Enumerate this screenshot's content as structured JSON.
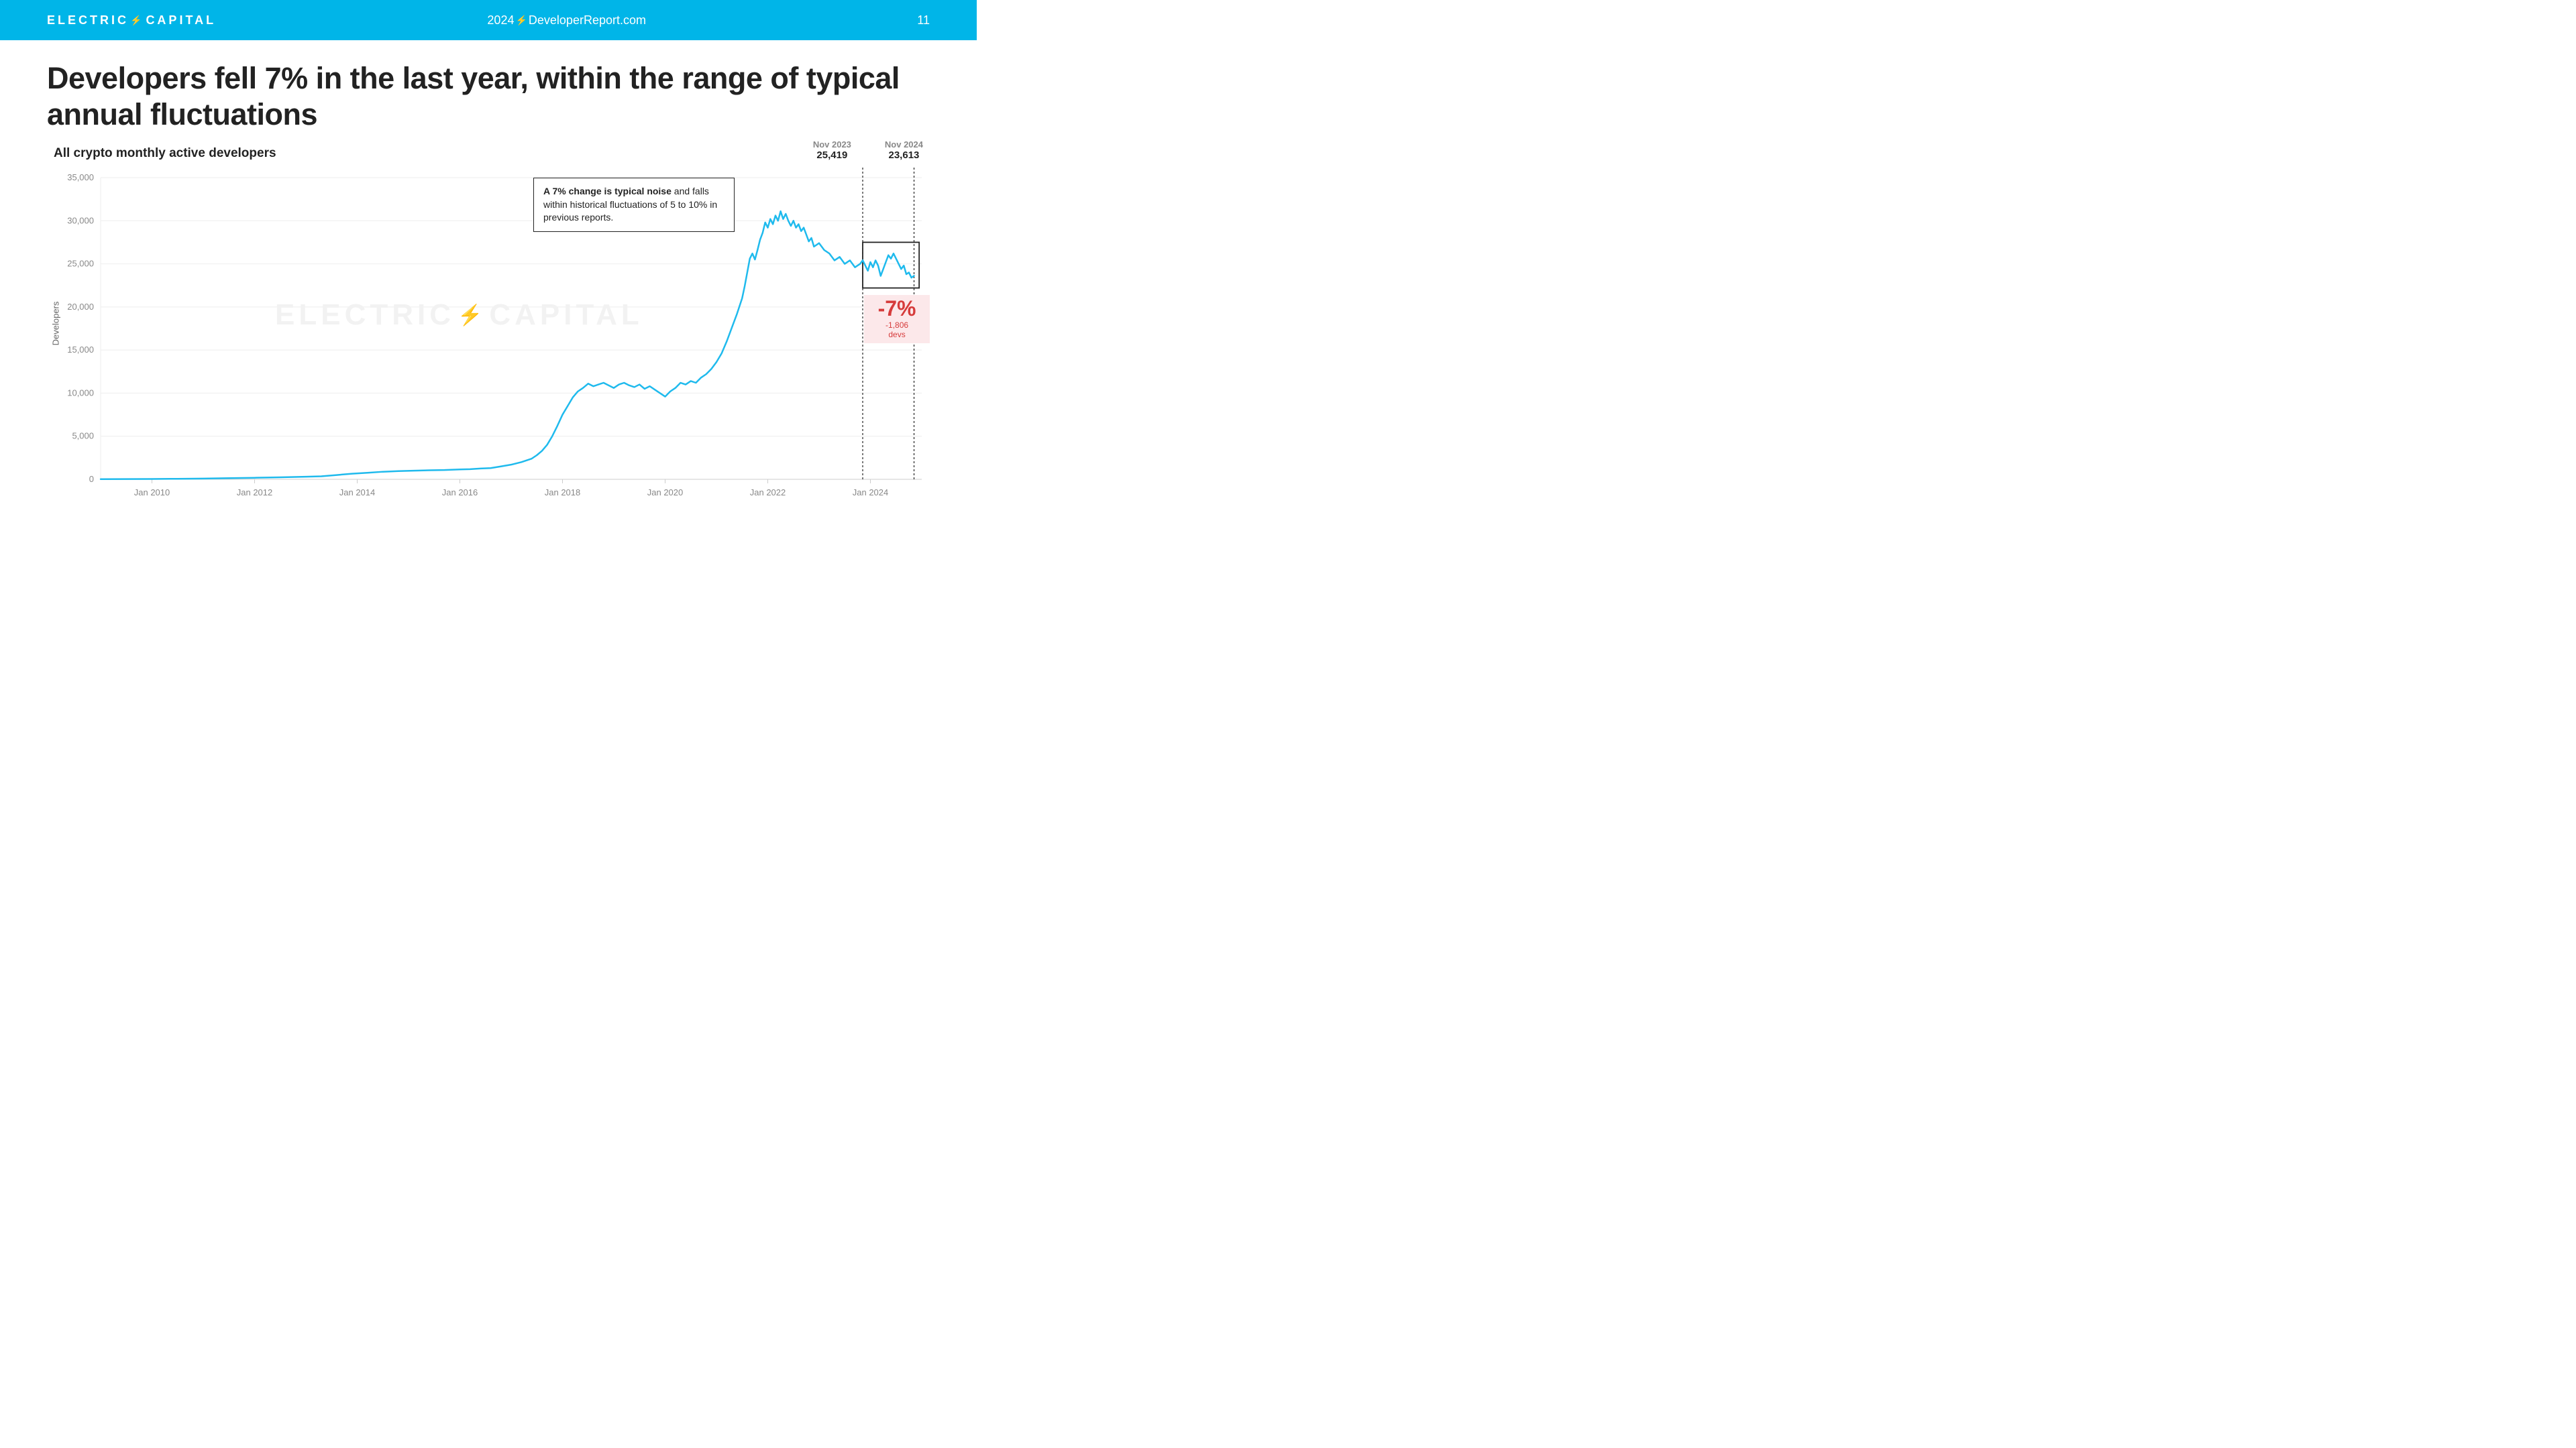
{
  "header": {
    "bg_color": "#00b5e8",
    "logo_left": "ELECTRIC",
    "logo_right": "CAPITAL",
    "center_year": "2024",
    "center_site": "DeveloperReport.com",
    "page_number": "11"
  },
  "title": "Developers fell 7% in the last year, within the range of typical annual fluctuations",
  "subtitle": "All crypto monthly active developers",
  "watermark_left": "ELECTRIC",
  "watermark_right": "CAPITAL",
  "annotation": {
    "bold": "A 7% change is typical noise",
    "rest": " and falls within historical fluctuations of 5 to 10% in previous reports."
  },
  "callouts": {
    "left": {
      "date": "Nov 2023",
      "value": "25,419"
    },
    "right": {
      "date": "Nov 2024",
      "value": "23,613"
    }
  },
  "delta": {
    "pct": "-7%",
    "sub": "-1,806 devs",
    "color": "#d63b3b",
    "bg": "#fce8ea"
  },
  "chart": {
    "type": "line",
    "line_color": "#1fbaed",
    "line_width": 2.5,
    "background": "#ffffff",
    "grid_color": "#eeeeee",
    "axis_color": "#cccccc",
    "tick_label_color": "#888888",
    "tick_fontsize": 13,
    "ylabel": "Developers",
    "ylim": [
      0,
      35000
    ],
    "ytick_step": 5000,
    "yticks": [
      "0",
      "5,000",
      "10,000",
      "15,000",
      "20,000",
      "25,000",
      "30,000",
      "35,000"
    ],
    "x_start_year": 2009,
    "x_end_year": 2025,
    "xticks": [
      "Jan 2010",
      "Jan 2012",
      "Jan 2014",
      "Jan 2016",
      "Jan 2018",
      "Jan 2020",
      "Jan 2022",
      "Jan 2024"
    ],
    "xtick_years": [
      2010,
      2012,
      2014,
      2016,
      2018,
      2020,
      2022,
      2024
    ],
    "highlight_box": {
      "x_start": 2023.85,
      "x_end": 2024.95,
      "y_min": 22200,
      "y_max": 27500
    },
    "ref_lines": [
      2023.85,
      2024.85
    ],
    "data": [
      [
        2009.0,
        20
      ],
      [
        2009.5,
        30
      ],
      [
        2010.0,
        40
      ],
      [
        2010.5,
        60
      ],
      [
        2011.0,
        90
      ],
      [
        2011.5,
        140
      ],
      [
        2012.0,
        180
      ],
      [
        2012.5,
        230
      ],
      [
        2013.0,
        300
      ],
      [
        2013.3,
        350
      ],
      [
        2013.6,
        500
      ],
      [
        2013.9,
        650
      ],
      [
        2014.2,
        760
      ],
      [
        2014.5,
        880
      ],
      [
        2014.8,
        950
      ],
      [
        2015.1,
        1000
      ],
      [
        2015.4,
        1050
      ],
      [
        2015.7,
        1080
      ],
      [
        2016.0,
        1150
      ],
      [
        2016.2,
        1180
      ],
      [
        2016.4,
        1250
      ],
      [
        2016.6,
        1300
      ],
      [
        2016.8,
        1500
      ],
      [
        2017.0,
        1700
      ],
      [
        2017.2,
        2000
      ],
      [
        2017.4,
        2400
      ],
      [
        2017.5,
        2800
      ],
      [
        2017.6,
        3300
      ],
      [
        2017.7,
        4000
      ],
      [
        2017.8,
        5000
      ],
      [
        2017.9,
        6200
      ],
      [
        2018.0,
        7500
      ],
      [
        2018.1,
        8500
      ],
      [
        2018.2,
        9500
      ],
      [
        2018.3,
        10200
      ],
      [
        2018.4,
        10600
      ],
      [
        2018.5,
        11100
      ],
      [
        2018.6,
        10800
      ],
      [
        2018.7,
        11000
      ],
      [
        2018.8,
        11200
      ],
      [
        2018.9,
        10900
      ],
      [
        2019.0,
        10600
      ],
      [
        2019.1,
        11000
      ],
      [
        2019.2,
        11200
      ],
      [
        2019.3,
        10900
      ],
      [
        2019.4,
        10700
      ],
      [
        2019.5,
        11000
      ],
      [
        2019.6,
        10500
      ],
      [
        2019.7,
        10800
      ],
      [
        2019.8,
        10400
      ],
      [
        2019.9,
        10000
      ],
      [
        2020.0,
        9600
      ],
      [
        2020.1,
        10200
      ],
      [
        2020.2,
        10600
      ],
      [
        2020.3,
        11200
      ],
      [
        2020.4,
        11000
      ],
      [
        2020.5,
        11400
      ],
      [
        2020.6,
        11200
      ],
      [
        2020.7,
        11800
      ],
      [
        2020.8,
        12200
      ],
      [
        2020.9,
        12800
      ],
      [
        2021.0,
        13600
      ],
      [
        2021.1,
        14600
      ],
      [
        2021.2,
        16000
      ],
      [
        2021.3,
        17600
      ],
      [
        2021.4,
        19200
      ],
      [
        2021.5,
        21000
      ],
      [
        2021.55,
        22400
      ],
      [
        2021.6,
        24000
      ],
      [
        2021.65,
        25600
      ],
      [
        2021.7,
        26200
      ],
      [
        2021.75,
        25500
      ],
      [
        2021.8,
        26600
      ],
      [
        2021.85,
        27800
      ],
      [
        2021.9,
        28600
      ],
      [
        2021.95,
        29800
      ],
      [
        2022.0,
        29200
      ],
      [
        2022.05,
        30200
      ],
      [
        2022.1,
        29600
      ],
      [
        2022.15,
        30600
      ],
      [
        2022.2,
        30000
      ],
      [
        2022.25,
        31100
      ],
      [
        2022.3,
        30200
      ],
      [
        2022.35,
        30800
      ],
      [
        2022.4,
        30000
      ],
      [
        2022.45,
        29400
      ],
      [
        2022.5,
        30000
      ],
      [
        2022.55,
        29200
      ],
      [
        2022.6,
        29600
      ],
      [
        2022.65,
        28800
      ],
      [
        2022.7,
        29200
      ],
      [
        2022.75,
        28400
      ],
      [
        2022.8,
        27600
      ],
      [
        2022.85,
        28000
      ],
      [
        2022.9,
        27000
      ],
      [
        2023.0,
        27400
      ],
      [
        2023.1,
        26600
      ],
      [
        2023.2,
        26200
      ],
      [
        2023.3,
        25400
      ],
      [
        2023.4,
        25800
      ],
      [
        2023.5,
        25000
      ],
      [
        2023.6,
        25400
      ],
      [
        2023.7,
        24600
      ],
      [
        2023.8,
        25000
      ],
      [
        2023.85,
        25419
      ],
      [
        2023.9,
        24800
      ],
      [
        2023.95,
        24200
      ],
      [
        2024.0,
        25200
      ],
      [
        2024.05,
        24600
      ],
      [
        2024.1,
        25400
      ],
      [
        2024.15,
        24800
      ],
      [
        2024.2,
        23600
      ],
      [
        2024.25,
        24400
      ],
      [
        2024.3,
        25200
      ],
      [
        2024.35,
        26000
      ],
      [
        2024.4,
        25600
      ],
      [
        2024.45,
        26200
      ],
      [
        2024.5,
        25600
      ],
      [
        2024.55,
        25000
      ],
      [
        2024.6,
        24400
      ],
      [
        2024.65,
        24800
      ],
      [
        2024.7,
        23800
      ],
      [
        2024.75,
        24000
      ],
      [
        2024.8,
        23400
      ],
      [
        2024.85,
        23613
      ]
    ]
  }
}
